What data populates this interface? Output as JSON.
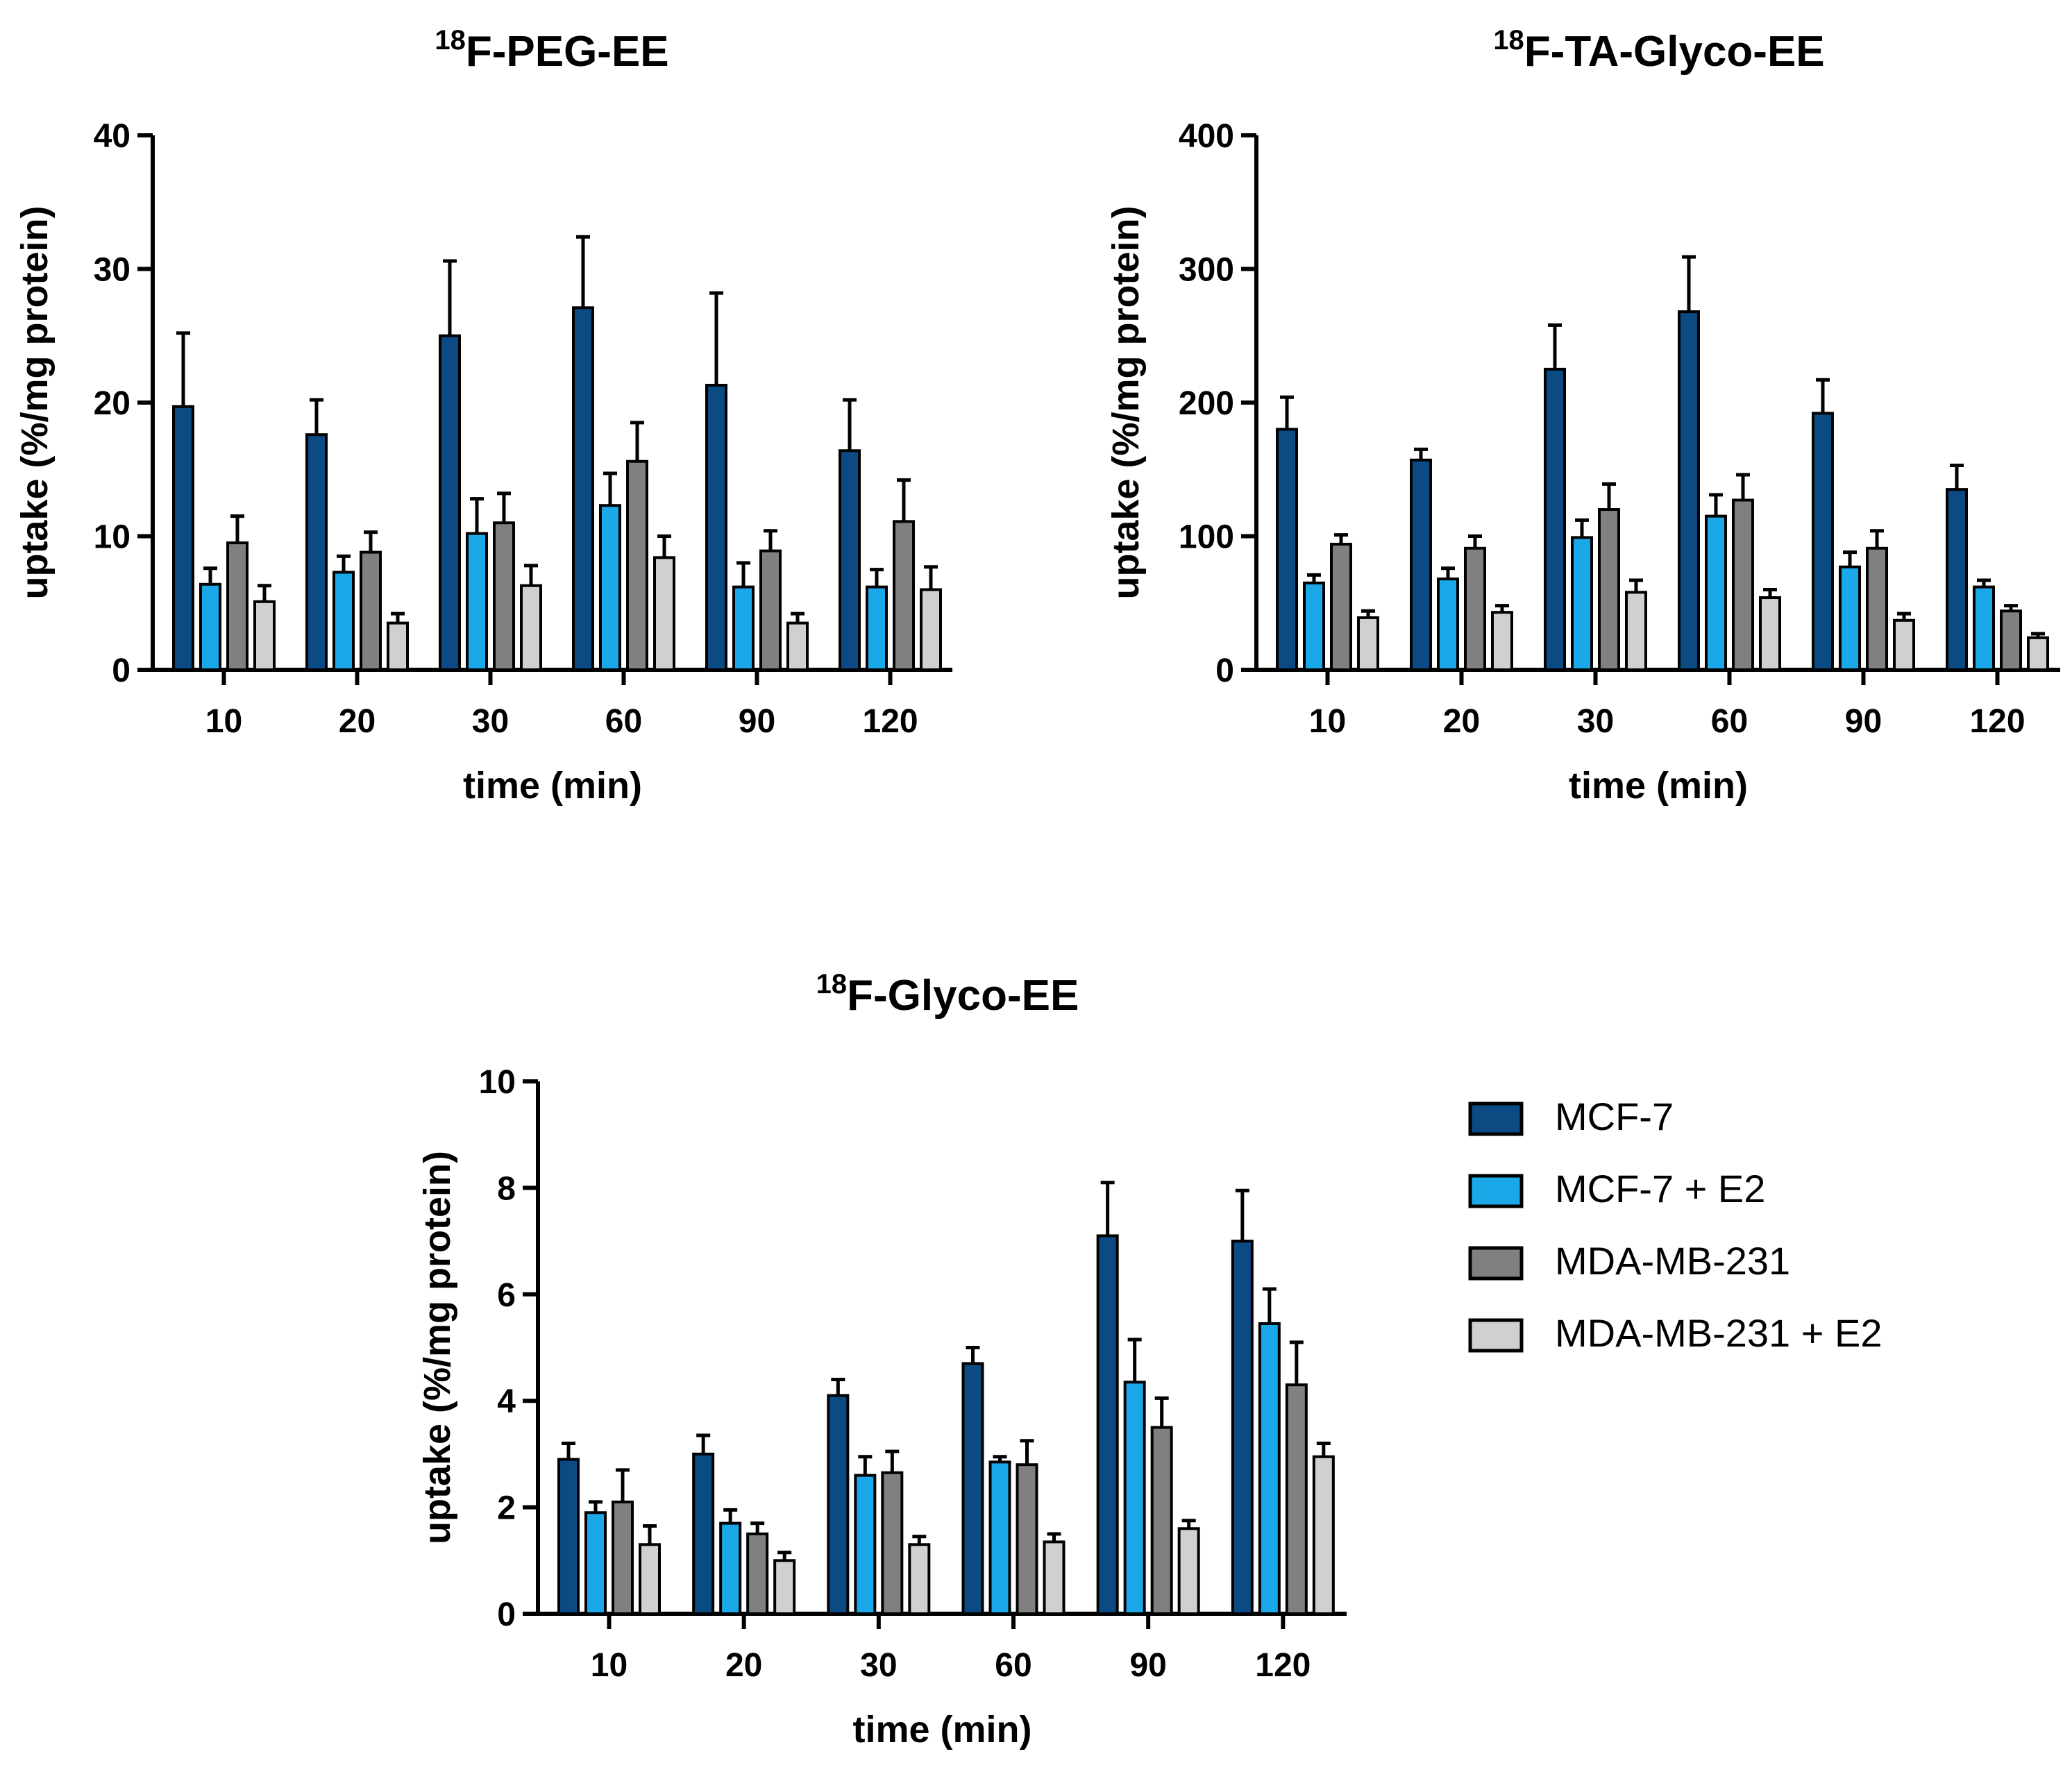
{
  "colors": {
    "MCF-7": "#0b4a82",
    "MCF-7 + E2": "#1ba8e8",
    "MDA-MB-231": "#808080",
    "MDA-MB-231 + E2": "#d0d0d0",
    "outline": "#000000"
  },
  "legend": {
    "placement": "right",
    "items": [
      "MCF-7",
      "MCF-7 + E2",
      "MDA-MB-231",
      "MDA-MB-231 + E2"
    ]
  },
  "chart_data": [
    {
      "type": "bar",
      "title_sup": "18",
      "title": "F-PEG-EE",
      "xlabel": "time (min)",
      "ylabel": "uptake (%/mg protein)",
      "ylim": [
        0,
        40
      ],
      "yticks": [
        0,
        10,
        20,
        30,
        40
      ],
      "categories": [
        "10",
        "20",
        "30",
        "60",
        "90",
        "120"
      ],
      "series": [
        {
          "name": "MCF-7",
          "values": [
            19.7,
            17.6,
            25.0,
            27.1,
            21.3,
            16.4
          ],
          "errors": [
            5.5,
            2.6,
            5.6,
            5.3,
            6.9,
            3.8
          ]
        },
        {
          "name": "MCF-7 + E2",
          "values": [
            6.4,
            7.3,
            10.2,
            12.3,
            6.2,
            6.2
          ],
          "errors": [
            1.2,
            1.2,
            2.6,
            2.4,
            1.8,
            1.3
          ]
        },
        {
          "name": "MDA-MB-231",
          "values": [
            9.5,
            8.8,
            11.0,
            15.6,
            8.9,
            11.1
          ],
          "errors": [
            2.0,
            1.5,
            2.2,
            2.9,
            1.5,
            3.1
          ]
        },
        {
          "name": "MDA-MB-231 + E2",
          "values": [
            5.1,
            3.5,
            6.3,
            8.4,
            3.5,
            6.0
          ],
          "errors": [
            1.2,
            0.7,
            1.5,
            1.6,
            0.7,
            1.7
          ]
        }
      ]
    },
    {
      "type": "bar",
      "title_sup": "18",
      "title": "F-TA-Glyco-EE",
      "xlabel": "time (min)",
      "ylabel": "uptake (%/mg protein)",
      "ylim": [
        0,
        400
      ],
      "yticks": [
        0,
        100,
        200,
        300,
        400
      ],
      "categories": [
        "10",
        "20",
        "30",
        "60",
        "90",
        "120"
      ],
      "series": [
        {
          "name": "MCF-7",
          "values": [
            180,
            157,
            225,
            268,
            192,
            135
          ],
          "errors": [
            24,
            8,
            33,
            41,
            25,
            18
          ]
        },
        {
          "name": "MCF-7 + E2",
          "values": [
            65,
            68,
            99,
            115,
            77,
            62
          ],
          "errors": [
            6,
            8,
            13,
            16,
            11,
            5
          ]
        },
        {
          "name": "MDA-MB-231",
          "values": [
            94,
            91,
            120,
            127,
            91,
            44
          ],
          "errors": [
            7,
            9,
            19,
            19,
            13,
            4
          ]
        },
        {
          "name": "MDA-MB-231 + E2",
          "values": [
            39,
            43,
            58,
            54,
            37,
            24
          ],
          "errors": [
            5,
            5,
            9,
            6,
            5,
            3
          ]
        }
      ]
    },
    {
      "type": "bar",
      "title_sup": "18",
      "title": "F-Glyco-EE",
      "xlabel": "time (min)",
      "ylabel": "uptake (%/mg protein)",
      "ylim": [
        0,
        10
      ],
      "yticks": [
        0,
        2,
        4,
        6,
        8,
        10
      ],
      "categories": [
        "10",
        "20",
        "30",
        "60",
        "90",
        "120"
      ],
      "series": [
        {
          "name": "MCF-7",
          "values": [
            2.9,
            3.0,
            4.1,
            4.7,
            7.1,
            7.0
          ],
          "errors": [
            0.3,
            0.35,
            0.3,
            0.3,
            1.0,
            0.95
          ]
        },
        {
          "name": "MCF-7 + E2",
          "values": [
            1.9,
            1.7,
            2.6,
            2.85,
            4.35,
            5.45
          ],
          "errors": [
            0.2,
            0.25,
            0.35,
            0.1,
            0.8,
            0.65
          ]
        },
        {
          "name": "MDA-MB-231",
          "values": [
            2.1,
            1.5,
            2.65,
            2.8,
            3.5,
            4.3
          ],
          "errors": [
            0.6,
            0.2,
            0.4,
            0.45,
            0.55,
            0.8
          ]
        },
        {
          "name": "MDA-MB-231 + E2",
          "values": [
            1.3,
            1.0,
            1.3,
            1.35,
            1.6,
            2.95
          ],
          "errors": [
            0.35,
            0.15,
            0.15,
            0.15,
            0.15,
            0.25
          ]
        }
      ]
    }
  ]
}
